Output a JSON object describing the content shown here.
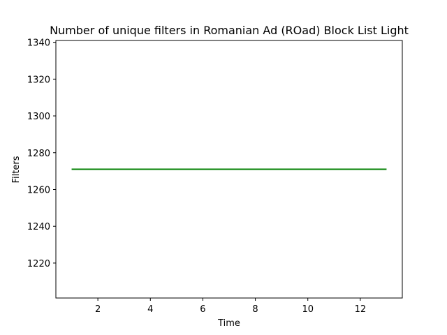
{
  "chart_data": {
    "type": "line",
    "title": "Number of unique filters in Romanian Ad (ROad) Block List Light",
    "xlabel": "Time",
    "ylabel": "Filters",
    "xlim": [
      0.4,
      13.6
    ],
    "ylim": [
      1201,
      1341
    ],
    "xticks": [
      2,
      4,
      6,
      8,
      10,
      12
    ],
    "yticks": [
      1220,
      1240,
      1260,
      1280,
      1300,
      1320,
      1340
    ],
    "grid": false,
    "series": [
      {
        "name": "Filters",
        "color": "#008000",
        "x": [
          1,
          2,
          3,
          4,
          5,
          6,
          7,
          8,
          9,
          10,
          11,
          12,
          13
        ],
        "y": [
          1271,
          1271,
          1271,
          1271,
          1271,
          1271,
          1271,
          1271,
          1271,
          1271,
          1271,
          1271,
          1271
        ]
      }
    ]
  }
}
